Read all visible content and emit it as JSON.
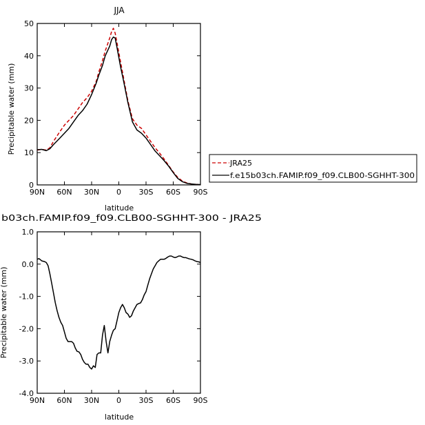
{
  "chart_data": [
    {
      "type": "line",
      "title": "JJA",
      "xlabel": "latitude",
      "ylabel": "Precipitable water (mm)",
      "xlim": [
        90,
        -90
      ],
      "ylim": [
        0,
        50
      ],
      "x_ticks": [
        90,
        60,
        30,
        0,
        -30,
        -60,
        -90
      ],
      "x_tick_labels": [
        "90N",
        "60N",
        "30N",
        "0",
        "30S",
        "60S",
        "90S"
      ],
      "y_ticks": [
        0,
        10,
        20,
        30,
        40,
        50
      ],
      "y_tick_labels": [
        "0",
        "10",
        "20",
        "30",
        "40",
        "50"
      ],
      "legend_position": "right",
      "series": [
        {
          "name": "JRA25",
          "color": "#cc0000",
          "style": "dashed",
          "x": [
            90,
            85,
            80,
            76,
            72,
            65,
            60,
            55,
            50,
            45,
            40,
            35,
            30,
            25,
            22,
            18,
            15,
            10,
            8,
            6,
            4,
            2,
            0,
            -2,
            -5,
            -10,
            -15,
            -20,
            -25,
            -30,
            -35,
            -40,
            -45,
            -50,
            -55,
            -60,
            -65,
            -70,
            -75,
            -80,
            -85,
            -90
          ],
          "values": [
            10.8,
            11.0,
            10.8,
            11.5,
            13.5,
            16.5,
            18.5,
            20.0,
            21.5,
            23.5,
            25.5,
            27.0,
            29.0,
            32.0,
            35.0,
            38.5,
            41.5,
            45.5,
            47.5,
            48.5,
            47.0,
            44.0,
            41.0,
            38.0,
            33.5,
            26.0,
            20.5,
            18.5,
            17.5,
            15.5,
            13.5,
            11.5,
            9.8,
            8.0,
            6.0,
            4.0,
            2.3,
            1.2,
            0.6,
            0.3,
            0.15,
            0.1
          ]
        },
        {
          "name": "f.e15b03ch.FAMIP.f09_f09.CLB00-SGHHT-300",
          "color": "#000000",
          "style": "solid",
          "x": [
            90,
            85,
            80,
            76,
            72,
            65,
            60,
            55,
            50,
            45,
            40,
            35,
            30,
            25,
            22,
            18,
            15,
            10,
            8,
            6,
            4,
            2,
            0,
            -2,
            -5,
            -10,
            -15,
            -20,
            -25,
            -30,
            -35,
            -40,
            -45,
            -50,
            -55,
            -60,
            -65,
            -70,
            -75,
            -80,
            -85,
            -90
          ],
          "values": [
            10.9,
            11.0,
            10.6,
            11.2,
            12.5,
            14.5,
            16.0,
            17.5,
            19.5,
            21.5,
            23.0,
            25.0,
            28.0,
            31.5,
            34.0,
            37.0,
            40.0,
            43.0,
            45.0,
            45.8,
            45.5,
            42.5,
            39.5,
            36.5,
            32.5,
            25.5,
            19.5,
            17.0,
            16.0,
            14.5,
            12.5,
            10.5,
            9.0,
            7.5,
            5.8,
            3.8,
            2.0,
            1.0,
            0.5,
            0.3,
            0.15,
            0.1
          ]
        }
      ]
    },
    {
      "type": "line",
      "title": "b03ch.FAMIP.f09_f09.CLB00-SGHHT-300 - JRA25",
      "xlabel": "latitude",
      "ylabel": "Precipitable water (mm)",
      "xlim": [
        90,
        -90
      ],
      "ylim": [
        -4.0,
        1.0
      ],
      "x_ticks": [
        90,
        60,
        30,
        0,
        -30,
        -60,
        -90
      ],
      "x_tick_labels": [
        "90N",
        "60N",
        "30N",
        "0",
        "30S",
        "60S",
        "90S"
      ],
      "y_ticks": [
        -4.0,
        -3.0,
        -2.0,
        -1.0,
        0.0,
        1.0
      ],
      "y_tick_labels": [
        "-4.0",
        "-3.0",
        "-2.0",
        "-1.0",
        "0.0",
        "1.0"
      ],
      "series": [
        {
          "color": "#000000",
          "style": "solid",
          "x": [
            90,
            88,
            85,
            82,
            80,
            78,
            76,
            74,
            72,
            70,
            68,
            66,
            64,
            62,
            60,
            58,
            56,
            54,
            52,
            50,
            48,
            46,
            44,
            42,
            40,
            38,
            36,
            34,
            32,
            30,
            28,
            26,
            24,
            22,
            20,
            18,
            16,
            14,
            12,
            10,
            8,
            6,
            4,
            2,
            0,
            -2,
            -4,
            -6,
            -8,
            -10,
            -12,
            -14,
            -16,
            -18,
            -20,
            -22,
            -24,
            -26,
            -28,
            -30,
            -32,
            -34,
            -36,
            -38,
            -40,
            -42,
            -44,
            -46,
            -48,
            -50,
            -52,
            -54,
            -56,
            -58,
            -60,
            -62,
            -64,
            -66,
            -68,
            -70,
            -72,
            -74,
            -76,
            -78,
            -80,
            -82,
            -84,
            -86,
            -88,
            -90
          ],
          "values": [
            0.15,
            0.17,
            0.1,
            0.08,
            0.05,
            -0.05,
            -0.3,
            -0.6,
            -0.9,
            -1.2,
            -1.45,
            -1.65,
            -1.8,
            -1.9,
            -2.1,
            -2.3,
            -2.4,
            -2.4,
            -2.4,
            -2.45,
            -2.6,
            -2.7,
            -2.72,
            -2.8,
            -2.95,
            -3.05,
            -3.1,
            -3.1,
            -3.2,
            -3.25,
            -3.15,
            -3.2,
            -2.8,
            -2.75,
            -2.75,
            -2.2,
            -1.9,
            -2.4,
            -2.75,
            -2.4,
            -2.2,
            -2.05,
            -2.0,
            -1.75,
            -1.5,
            -1.35,
            -1.25,
            -1.35,
            -1.5,
            -1.55,
            -1.65,
            -1.6,
            -1.45,
            -1.35,
            -1.25,
            -1.22,
            -1.2,
            -1.1,
            -0.95,
            -0.85,
            -0.65,
            -0.45,
            -0.3,
            -0.15,
            -0.05,
            0.05,
            0.1,
            0.15,
            0.15,
            0.15,
            0.18,
            0.22,
            0.25,
            0.25,
            0.22,
            0.2,
            0.22,
            0.25,
            0.25,
            0.22,
            0.2,
            0.2,
            0.18,
            0.16,
            0.15,
            0.13,
            0.1,
            0.08,
            0.07,
            0.05
          ]
        }
      ]
    }
  ]
}
